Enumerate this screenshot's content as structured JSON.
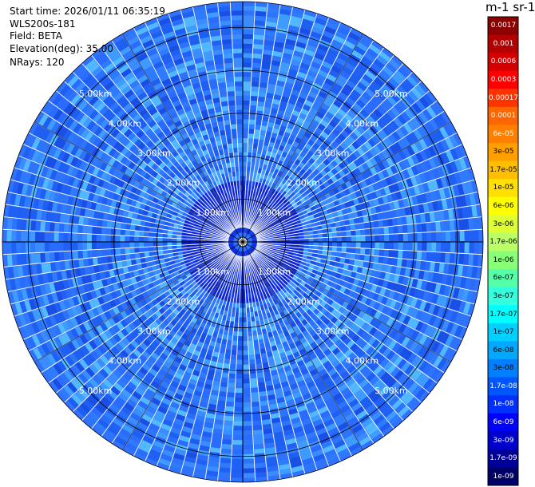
{
  "info": {
    "start_time": "Start time: 2026/01/11 06:35:19",
    "instrument": "WLS200s-181",
    "field": "Field: BETA",
    "elevation": "Elevation(deg): 35.00",
    "nrays": "NRays: 120"
  },
  "colorbar": {
    "unit_label": "m-1 sr-1",
    "labels": [
      "0.0017",
      "0.001",
      "0.0006",
      "0.0003",
      "0.00017",
      "0.0001",
      "6e-05",
      "3e-05",
      "1.7e-05",
      "1e-05",
      "6e-06",
      "3e-06",
      "1.7e-06",
      "1e-06",
      "6e-07",
      "3e-07",
      "1.7e-07",
      "1e-07",
      "6e-08",
      "3e-08",
      "1.7e-08",
      "1e-08",
      "6e-09",
      "3e-09",
      "1.7e-09",
      "1e-09"
    ],
    "colors": [
      "#8b0000",
      "#b30000",
      "#d40000",
      "#ff0000",
      "#ff3300",
      "#ff6600",
      "#ff8000",
      "#ff9f00",
      "#ffbf00",
      "#ffe000",
      "#ffff00",
      "#ddff33",
      "#bbff66",
      "#88ff77",
      "#55ffaa",
      "#33ffdd",
      "#00ffff",
      "#00d0ff",
      "#00a8ff",
      "#0080ff",
      "#0055ff",
      "#0030ff",
      "#0000ff",
      "#0000cc",
      "#000099",
      "#000066"
    ]
  },
  "chart_data": {
    "type": "heatmap",
    "projection": "polar-ppi",
    "range_rings_km": [
      1,
      2,
      3,
      4,
      5
    ],
    "range_labels": [
      "1.00km",
      "2.00km",
      "3.00km",
      "4.00km",
      "5.00km"
    ],
    "max_range_km": 5.6,
    "nrays": 120,
    "color_scale": "log",
    "value_range": [
      1e-09,
      0.0017
    ],
    "dominant_value_outer": 3e-08,
    "dominant_value_inner": 1e-08
  }
}
